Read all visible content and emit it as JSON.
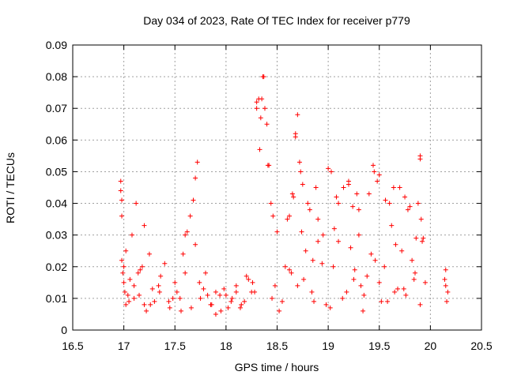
{
  "chart_data": {
    "type": "scatter",
    "title": "Day 034 of 2023, Rate Of TEC Index for receiver p779",
    "xlabel": "GPS time / hours",
    "ylabel": "ROTI / TECUs",
    "xlim": [
      16.5,
      20.5
    ],
    "ylim": [
      0,
      0.09
    ],
    "xticks": [
      16.5,
      17,
      17.5,
      18,
      18.5,
      19,
      19.5,
      20,
      20.5
    ],
    "yticks": [
      0,
      0.01,
      0.02,
      0.03,
      0.04,
      0.05,
      0.06,
      0.07,
      0.08,
      0.09
    ],
    "xtick_labels": [
      "16.5",
      "17",
      "17.5",
      "18",
      "18.5",
      "19",
      "19.5",
      "20",
      "20.5"
    ],
    "ytick_labels": [
      "0",
      "0.01",
      "0.02",
      "0.03",
      "0.04",
      "0.05",
      "0.06",
      "0.07",
      "0.08",
      "0.09"
    ],
    "grid": true,
    "marker": "plus",
    "marker_color": "#ff0000",
    "series": [
      {
        "name": "ROTI",
        "x": [
          16.97,
          16.97,
          16.98,
          16.98,
          16.99,
          17.0,
          17.01,
          17.02,
          17.05,
          17.08,
          17.1,
          17.12,
          17.15,
          17.18,
          17.2,
          17.25,
          17.3,
          17.35,
          17.4,
          17.45,
          17.5,
          17.55,
          17.6,
          17.62,
          17.65,
          17.68,
          17.7,
          17.72,
          17.75,
          17.8,
          17.85,
          17.9,
          17.95,
          18.0,
          18.05,
          18.1,
          18.15,
          18.2,
          18.25,
          18.3,
          18.33,
          18.35,
          18.36,
          18.38,
          18.4,
          18.42,
          18.44,
          18.46,
          18.5,
          18.55,
          18.6,
          18.65,
          18.68,
          18.7,
          18.72,
          18.75,
          18.8,
          18.85,
          18.9,
          18.95,
          19.0,
          19.05,
          19.1,
          19.15,
          19.2,
          19.25,
          19.3,
          19.35,
          19.4,
          19.45,
          19.5,
          19.55,
          19.6,
          19.65,
          19.7,
          19.75,
          19.8,
          19.85,
          19.9,
          19.92,
          19.95,
          20.15,
          20.15,
          20.16,
          16.98,
          17.02,
          17.06,
          17.1,
          17.16,
          17.22,
          17.28,
          17.36,
          17.44,
          17.52,
          17.6,
          17.66,
          17.74,
          17.82,
          17.9,
          17.98,
          18.06,
          18.14,
          18.22,
          18.28,
          18.45,
          18.52,
          18.62,
          18.7,
          18.78,
          18.86,
          18.94,
          19.02,
          19.1,
          19.18,
          19.26,
          19.34,
          19.42,
          19.5,
          19.58,
          19.66,
          19.74,
          19.82,
          19.9,
          18.62,
          18.74,
          18.9,
          19.06,
          19.22,
          19.3,
          19.46,
          19.62,
          19.72,
          19.86,
          19.9,
          17.0,
          17.2,
          17.58,
          17.7,
          18.3,
          18.32,
          18.34,
          18.37,
          18.41,
          18.66,
          18.68,
          18.73,
          18.82,
          18.88,
          19.03,
          19.08,
          19.2,
          19.24,
          19.28,
          19.44,
          19.48,
          19.56,
          19.64,
          19.78,
          19.88,
          19.91,
          19.93,
          20.14,
          20.17,
          17.04,
          17.14,
          17.26,
          17.34,
          17.48,
          17.56,
          17.78,
          17.86,
          17.94,
          18.02,
          18.1,
          18.18,
          18.26,
          18.48,
          18.58,
          18.64,
          18.76,
          18.84,
          18.98,
          19.14,
          19.32,
          19.38,
          19.52,
          19.68,
          19.76,
          19.84
        ],
        "y": [
          0.047,
          0.044,
          0.041,
          0.036,
          0.018,
          0.015,
          0.012,
          0.025,
          0.009,
          0.03,
          0.014,
          0.04,
          0.011,
          0.02,
          0.008,
          0.024,
          0.009,
          0.012,
          0.021,
          0.007,
          0.015,
          0.01,
          0.03,
          0.031,
          0.036,
          0.041,
          0.048,
          0.053,
          0.01,
          0.018,
          0.008,
          0.012,
          0.006,
          0.011,
          0.009,
          0.014,
          0.008,
          0.017,
          0.012,
          0.072,
          0.057,
          0.073,
          0.08,
          0.07,
          0.065,
          0.052,
          0.04,
          0.036,
          0.031,
          0.009,
          0.035,
          0.043,
          0.062,
          0.068,
          0.053,
          0.046,
          0.04,
          0.022,
          0.035,
          0.03,
          0.051,
          0.02,
          0.04,
          0.045,
          0.047,
          0.016,
          0.03,
          0.011,
          0.043,
          0.05,
          0.049,
          0.02,
          0.04,
          0.012,
          0.045,
          0.042,
          0.039,
          0.018,
          0.055,
          0.028,
          0.015,
          0.019,
          0.014,
          0.009,
          0.022,
          0.008,
          0.016,
          0.01,
          0.019,
          0.006,
          0.013,
          0.017,
          0.009,
          0.012,
          0.018,
          0.007,
          0.015,
          0.011,
          0.005,
          0.013,
          0.01,
          0.007,
          0.016,
          0.012,
          0.01,
          0.006,
          0.019,
          0.014,
          0.025,
          0.009,
          0.021,
          0.007,
          0.028,
          0.012,
          0.019,
          0.006,
          0.024,
          0.015,
          0.009,
          0.027,
          0.013,
          0.022,
          0.008,
          0.036,
          0.031,
          0.028,
          0.032,
          0.026,
          0.038,
          0.022,
          0.033,
          0.025,
          0.029,
          0.054,
          0.02,
          0.033,
          0.024,
          0.027,
          0.07,
          0.073,
          0.067,
          0.08,
          0.052,
          0.042,
          0.061,
          0.05,
          0.038,
          0.045,
          0.05,
          0.042,
          0.046,
          0.039,
          0.043,
          0.052,
          0.047,
          0.041,
          0.045,
          0.038,
          0.04,
          0.035,
          0.029,
          0.016,
          0.012,
          0.011,
          0.018,
          0.008,
          0.014,
          0.01,
          0.006,
          0.013,
          0.008,
          0.011,
          0.007,
          0.012,
          0.009,
          0.015,
          0.014,
          0.02,
          0.018,
          0.016,
          0.012,
          0.008,
          0.01,
          0.014,
          0.017,
          0.009,
          0.013,
          0.011,
          0.016
        ]
      }
    ]
  }
}
